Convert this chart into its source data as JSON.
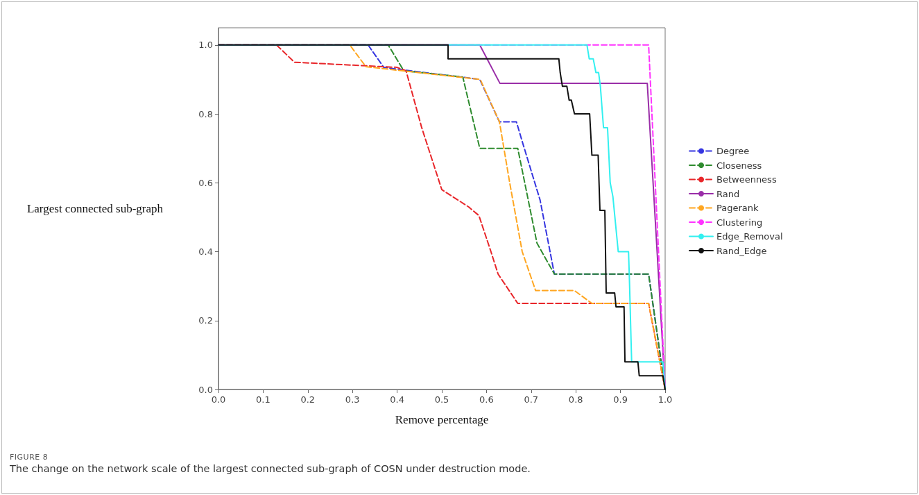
{
  "chart_data": {
    "type": "line",
    "xlabel": "Remove percentage",
    "ylabel": "Largest connected sub-graph",
    "xlim": [
      0,
      1.0
    ],
    "ylim": [
      0,
      1.05
    ],
    "xticks": [
      {
        "value": 0,
        "label": "0.0"
      },
      0.1,
      0.2,
      0.3,
      0.4,
      0.5,
      0.6,
      0.7,
      0.8,
      0.9,
      {
        "value": 1,
        "label": "1.0"
      }
    ],
    "yticks": [
      {
        "value": 0,
        "label": "0.0"
      },
      0.2,
      0.4,
      0.6,
      0.8,
      {
        "value": 1,
        "label": "1.0"
      }
    ],
    "grid": false,
    "legend": "right",
    "marker": "none",
    "series": [
      {
        "name": "Degree",
        "color": "#3535e0",
        "line_style": "dashed",
        "x": [
          0,
          0.335,
          0.37,
          0.585,
          0.629,
          0.667,
          0.68,
          0.72,
          0.752,
          0.963,
          1.0
        ],
        "values": [
          1,
          1,
          0.935,
          0.9,
          0.777,
          0.777,
          0.72,
          0.55,
          0.335,
          0.335,
          0.0
        ]
      },
      {
        "name": "Closeness",
        "color": "#2e8b2e",
        "line_style": "dashed",
        "x": [
          0,
          0.38,
          0.415,
          0.547,
          0.585,
          0.67,
          0.713,
          0.752,
          0.963,
          1.0
        ],
        "values": [
          1,
          1,
          0.925,
          0.907,
          0.7,
          0.7,
          0.425,
          0.335,
          0.335,
          0.0
        ]
      },
      {
        "name": "Betweenness",
        "color": "#e8262a",
        "line_style": "dashed",
        "x": [
          0,
          0.13,
          0.17,
          0.4,
          0.42,
          0.455,
          0.5,
          0.56,
          0.583,
          0.61,
          0.626,
          0.67,
          0.963,
          1.0
        ],
        "values": [
          1,
          1,
          0.95,
          0.935,
          0.925,
          0.76,
          0.58,
          0.53,
          0.505,
          0.4,
          0.335,
          0.25,
          0.25,
          0.0
        ]
      },
      {
        "name": "Rand",
        "color": "#9a2ea8",
        "line_style": "solid",
        "x": [
          0,
          0.585,
          0.63,
          0.96,
          1.0
        ],
        "values": [
          1,
          1,
          0.889,
          0.889,
          0.0
        ]
      },
      {
        "name": "Pagerank",
        "color": "#ffa620",
        "line_style": "dashed",
        "x": [
          0,
          0.294,
          0.33,
          0.586,
          0.629,
          0.652,
          0.68,
          0.71,
          0.797,
          0.836,
          0.963,
          1.0
        ],
        "values": [
          1,
          1,
          0.937,
          0.9,
          0.777,
          0.6,
          0.4,
          0.287,
          0.287,
          0.25,
          0.25,
          0.0
        ]
      },
      {
        "name": "Clustering",
        "color": "#ff33ff",
        "line_style": "dashed",
        "x": [
          0,
          0.963,
          1.0
        ],
        "values": [
          1,
          1,
          0.0
        ]
      },
      {
        "name": "Edge_Removal",
        "color": "#33f0f0",
        "line_style": "solid",
        "x": [
          0,
          0.825,
          0.83,
          0.839,
          0.845,
          0.851,
          0.855,
          0.862,
          0.871,
          0.877,
          0.883,
          0.889,
          0.895,
          0.918,
          0.92,
          0.925,
          0.995,
          1.0
        ],
        "values": [
          1,
          1,
          0.96,
          0.96,
          0.92,
          0.92,
          0.88,
          0.76,
          0.76,
          0.6,
          0.56,
          0.48,
          0.4,
          0.4,
          0.32,
          0.08,
          0.08,
          0.0
        ]
      },
      {
        "name": "Rand_Edge",
        "color": "#111111",
        "line_style": "solid",
        "x": [
          0,
          0.514,
          0.514,
          0.762,
          0.765,
          0.77,
          0.78,
          0.785,
          0.79,
          0.797,
          0.831,
          0.836,
          0.85,
          0.854,
          0.865,
          0.868,
          0.887,
          0.89,
          0.908,
          0.91,
          0.939,
          0.942,
          0.995,
          1.0
        ],
        "values": [
          1,
          1,
          0.96,
          0.96,
          0.92,
          0.88,
          0.88,
          0.84,
          0.84,
          0.8,
          0.8,
          0.68,
          0.68,
          0.52,
          0.52,
          0.28,
          0.28,
          0.24,
          0.24,
          0.08,
          0.08,
          0.04,
          0.04,
          0.0
        ]
      }
    ],
    "annotations": [
      "FIGURE 8",
      "The change on the network scale of the largest connected sub-graph of COSN under destruction mode."
    ]
  }
}
